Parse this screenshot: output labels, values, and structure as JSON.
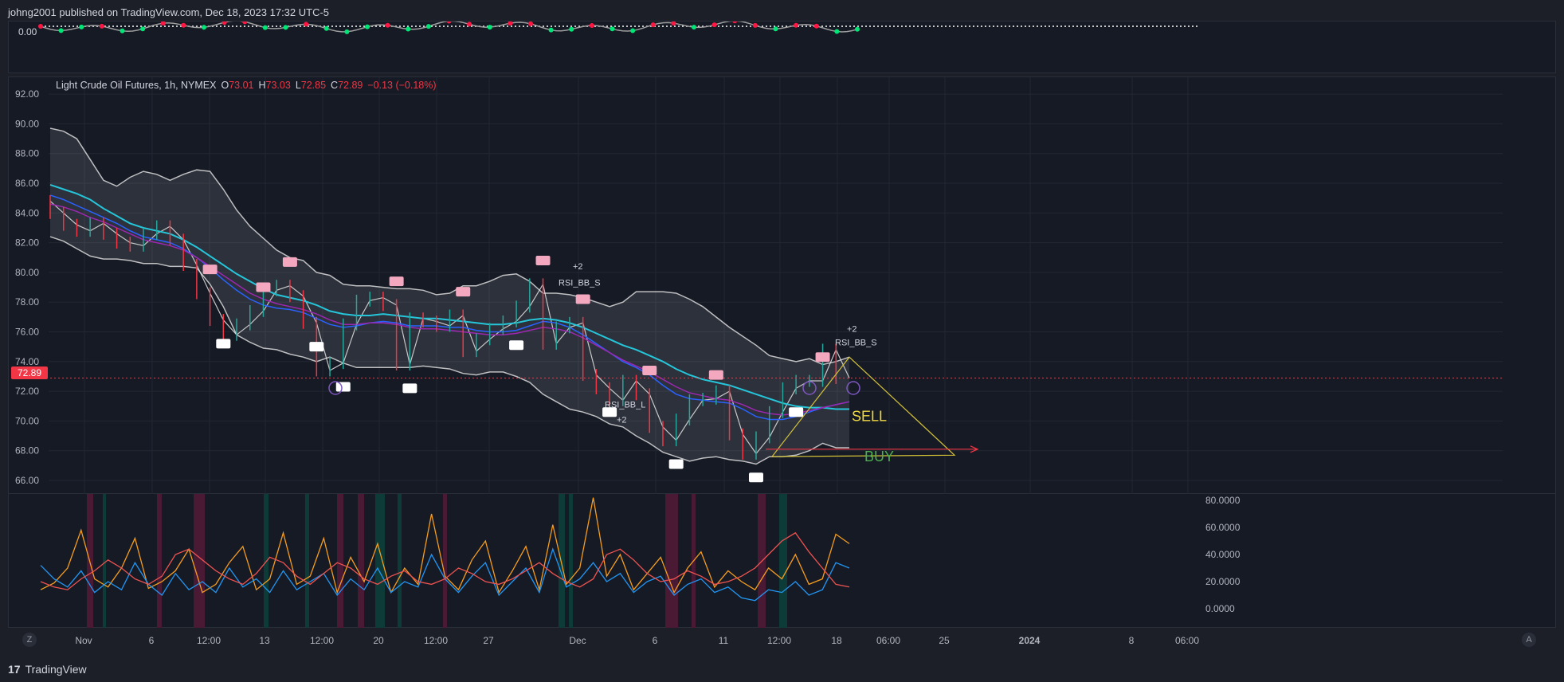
{
  "header": {
    "publisher_text": "johng2001 published on TradingView.com, Dec 18, 2023 17:32 UTC-5"
  },
  "footer": {
    "brand": "TradingView",
    "logo_glyph": "17"
  },
  "legend": {
    "symbol": "Light Crude Oil Futures, 1h, NYMEX",
    "o_label": "O",
    "o_value": "73.01",
    "h_label": "H",
    "h_value": "73.03",
    "l_label": "L",
    "l_value": "72.85",
    "c_label": "C",
    "c_value": "72.89",
    "change": "−0.13 (−0.18%)"
  },
  "last_price_tag": "72.89",
  "oscillator_label": "0.00",
  "axis_buttons": {
    "left": "Z",
    "right": "A"
  },
  "colors": {
    "background": "#161a25",
    "grid": "#232733",
    "band": "#ffffff",
    "ema_cyan": "#26c6da",
    "ema_blue": "#2962ff",
    "ema_purple": "#9c27b0",
    "sell": "#f0d840",
    "buy": "#4caf50",
    "down": "#f23645",
    "up": "#26a69a",
    "rsi_orange": "#f59d1e",
    "rsi_blue": "#2196f3",
    "rsi_red": "#ef5350"
  },
  "annotations": {
    "sell_label": "SELL",
    "buy_label": "BUY",
    "rsi_bb_s_1": "RSI_BB_S",
    "rsi_bb_s_2": "RSI_BB_S",
    "rsi_bb_l": "RSI_BB_L",
    "plus_two_1": "+2",
    "plus_two_2": "+2",
    "plus_two_3": "+2"
  },
  "chart_data": [
    {
      "type": "line",
      "title": "",
      "ylim": [
        65,
        93
      ],
      "y_ticks": [
        "92.00",
        "90.00",
        "88.00",
        "86.00",
        "84.00",
        "82.00",
        "80.00",
        "78.00",
        "76.00",
        "74.00",
        "72.00",
        "70.00",
        "68.00",
        "66.00"
      ],
      "x_ticks": [
        "Nov",
        "6",
        "12:00",
        "13",
        "12:00",
        "20",
        "12:00",
        "27",
        "Dec",
        "6",
        "11",
        "12:00",
        "18",
        "06:00",
        "25",
        "2024",
        "8",
        "06:00"
      ],
      "series": [
        {
          "name": "",
          "values": [
            84.8,
            84.0,
            83.2,
            82.8,
            83.3,
            82.6,
            82.0,
            81.8,
            82.6,
            83.1,
            82.2,
            80.5,
            78.6,
            76.8,
            75.8,
            76.5,
            77.4,
            78.8,
            79.1,
            78.4,
            76.6,
            73.4,
            73.9,
            76.5,
            78.1,
            78.3,
            77.8,
            73.8,
            76.9,
            76.7,
            76.4,
            77.1,
            74.7,
            75.5,
            76.2,
            76.7,
            77.7,
            79.2,
            75.2,
            76.3,
            76.6,
            73.1,
            72.2,
            71.4,
            72.7,
            71.8,
            69.6,
            68.7,
            70.1,
            71.4,
            71.5,
            72.0,
            69.1,
            67.8,
            68.9,
            70.6,
            72.2,
            72.7,
            72.7,
            74.8,
            72.89
          ]
        },
        {
          "name": "",
          "values": [
            89.7,
            89.5,
            89.0,
            87.6,
            86.2,
            85.8,
            86.4,
            86.8,
            86.6,
            86.2,
            86.6,
            86.9,
            86.8,
            85.6,
            84.2,
            83.1,
            82.3,
            81.5,
            81.0,
            80.8,
            80.0,
            79.8,
            79.2,
            79.1,
            79.1,
            79.0,
            78.9,
            78.9,
            78.8,
            78.5,
            78.6,
            79.1,
            79.1,
            79.4,
            79.8,
            79.9,
            79.4,
            78.6,
            78.6,
            78.5,
            78.3,
            78.0,
            77.7,
            78.0,
            78.7,
            78.7,
            78.7,
            78.6,
            78.2,
            77.7,
            77.0,
            76.3,
            75.7,
            75.1,
            74.4,
            74.2,
            74.0,
            74.2,
            73.8,
            74.0,
            74.3
          ]
        },
        {
          "name": "",
          "values": [
            82.4,
            82.1,
            81.6,
            81.1,
            80.9,
            80.9,
            80.8,
            80.6,
            80.6,
            80.4,
            80.4,
            80.3,
            79.2,
            77.7,
            75.8,
            75.3,
            74.9,
            74.8,
            74.5,
            74.3,
            74.0,
            74.3,
            73.9,
            73.6,
            73.6,
            73.6,
            73.6,
            73.6,
            73.7,
            73.6,
            73.5,
            73.2,
            73.1,
            73.3,
            73.3,
            73.0,
            72.6,
            71.8,
            71.3,
            70.8,
            70.6,
            70.3,
            69.8,
            69.6,
            69.0,
            68.5,
            67.9,
            67.6,
            67.3,
            67.5,
            67.6,
            67.4,
            67.3,
            67.1,
            67.6,
            67.6,
            67.7,
            68.0,
            68.5,
            68.2,
            68.2
          ]
        },
        {
          "name": "",
          "values": [
            85.9,
            85.6,
            85.3,
            84.9,
            84.3,
            83.8,
            83.3,
            83.0,
            82.8,
            82.6,
            82.2,
            81.7,
            81.1,
            80.5,
            79.9,
            79.4,
            78.9,
            78.5,
            78.3,
            78.1,
            77.8,
            77.4,
            77.2,
            77.1,
            77.1,
            77.2,
            77.1,
            77.0,
            76.9,
            76.9,
            76.8,
            76.7,
            76.6,
            76.5,
            76.5,
            76.6,
            76.8,
            76.9,
            76.8,
            76.6,
            76.3,
            75.9,
            75.5,
            75.1,
            74.8,
            74.4,
            74.0,
            73.5,
            73.1,
            72.8,
            72.6,
            72.4,
            72.1,
            71.8,
            71.5,
            71.2,
            71.0,
            70.9,
            70.9,
            70.8,
            70.8
          ]
        },
        {
          "name": "",
          "values": [
            85.2,
            84.9,
            84.5,
            84.1,
            83.7,
            83.3,
            82.8,
            82.4,
            82.2,
            82.0,
            81.6,
            81.0,
            80.3,
            79.5,
            78.8,
            78.2,
            77.8,
            77.6,
            77.5,
            77.3,
            76.9,
            76.5,
            76.3,
            76.4,
            76.6,
            76.7,
            76.6,
            76.4,
            76.4,
            76.4,
            76.3,
            76.3,
            76.1,
            76.0,
            76.0,
            76.1,
            76.4,
            76.7,
            76.6,
            76.3,
            75.8,
            75.2,
            74.6,
            74.0,
            73.6,
            73.1,
            72.4,
            71.8,
            71.5,
            71.4,
            71.3,
            71.2,
            70.8,
            70.3,
            70.1,
            70.1,
            70.3,
            70.6,
            70.9,
            71.1,
            71.3
          ]
        },
        {
          "name": "",
          "values": [
            84.6,
            84.4,
            84.1,
            83.7,
            83.4,
            83.0,
            82.6,
            82.2,
            82.0,
            81.8,
            81.5,
            81.0,
            80.4,
            79.8,
            79.2,
            78.6,
            78.2,
            77.9,
            77.7,
            77.5,
            77.2,
            76.8,
            76.5,
            76.5,
            76.6,
            76.6,
            76.5,
            76.3,
            76.2,
            76.2,
            76.1,
            76.0,
            75.9,
            75.8,
            75.8,
            75.9,
            76.1,
            76.3,
            76.2,
            76.0,
            75.6,
            75.1,
            74.6,
            74.1,
            73.7,
            73.3,
            72.8,
            72.3,
            71.9,
            71.7,
            71.5,
            71.4,
            71.1,
            70.7,
            70.5,
            70.4,
            70.5,
            70.7,
            70.9,
            71.1,
            71.3
          ]
        }
      ],
      "level_lines": {
        "last_price": 72.89,
        "buy_line": 67.6,
        "sell_target": 68.1
      }
    },
    {
      "type": "line",
      "title": "",
      "ylim": [
        -2,
        86
      ],
      "y_ticks": [
        "80.0000",
        "60.0000",
        "40.0000",
        "20.0000",
        "0.0000"
      ],
      "series": [
        {
          "name": "",
          "values": [
            14,
            19,
            30,
            58,
            22,
            16,
            30,
            52,
            15,
            20,
            28,
            44,
            12,
            18,
            34,
            46,
            14,
            22,
            56,
            18,
            24,
            52,
            12,
            38,
            20,
            48,
            12,
            30,
            18,
            70,
            24,
            14,
            36,
            50,
            12,
            28,
            46,
            14,
            62,
            18,
            30,
            82,
            24,
            40,
            14,
            26,
            38,
            12,
            30,
            42,
            16,
            28,
            20,
            14,
            30,
            22,
            40,
            18,
            22,
            55,
            48
          ]
        },
        {
          "name": "",
          "values": [
            32,
            22,
            16,
            28,
            12,
            20,
            14,
            34,
            18,
            10,
            26,
            14,
            20,
            12,
            30,
            16,
            22,
            12,
            28,
            14,
            20,
            26,
            10,
            22,
            14,
            30,
            12,
            20,
            16,
            40,
            22,
            12,
            24,
            34,
            10,
            20,
            30,
            12,
            44,
            16,
            22,
            34,
            20,
            26,
            12,
            20,
            24,
            10,
            18,
            22,
            12,
            16,
            8,
            6,
            14,
            12,
            20,
            10,
            14,
            34,
            30
          ]
        },
        {
          "name": "",
          "values": [
            20,
            16,
            14,
            22,
            28,
            36,
            30,
            22,
            18,
            24,
            40,
            44,
            36,
            28,
            22,
            18,
            26,
            38,
            34,
            24,
            18,
            26,
            34,
            30,
            22,
            18,
            24,
            28,
            20,
            18,
            22,
            30,
            26,
            20,
            18,
            22,
            28,
            34,
            26,
            20,
            16,
            22,
            40,
            44,
            36,
            26,
            20,
            22,
            28,
            24,
            18,
            20,
            24,
            30,
            40,
            50,
            56,
            42,
            30,
            18,
            16
          ]
        }
      ]
    }
  ]
}
